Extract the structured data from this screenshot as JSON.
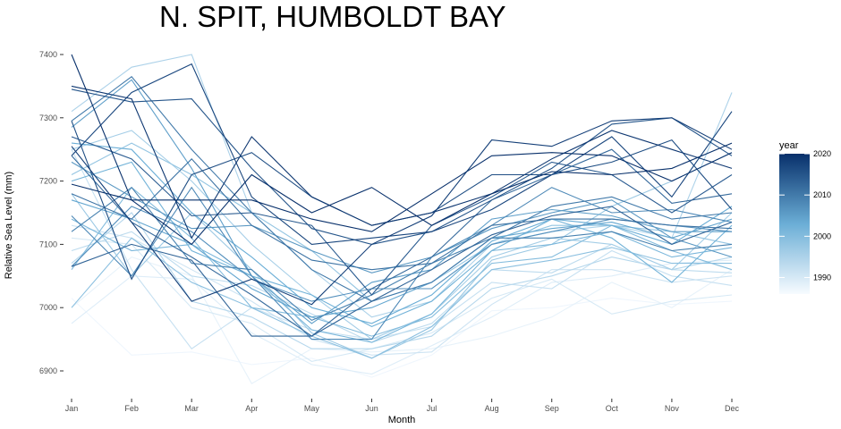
{
  "chart_data": {
    "type": "line",
    "title": "N. SPIT, HUMBOLDT BAY",
    "xlabel": "Month",
    "ylabel": "Relative Sea Level (mm)",
    "categories": [
      "Jan",
      "Feb",
      "Mar",
      "Apr",
      "May",
      "Jun",
      "Jul",
      "Aug",
      "Sep",
      "Oct",
      "Nov",
      "Dec"
    ],
    "ylim": [
      6870,
      7410
    ],
    "yticks": [
      6900,
      7000,
      7100,
      7200,
      7300,
      7400
    ],
    "grid": false,
    "legend": {
      "title": "year",
      "position": "right",
      "type": "colorbar",
      "range": [
        1986,
        2020
      ],
      "ticks": [
        1990,
        2000,
        2010,
        2020
      ],
      "color_low": "#f7fbff",
      "color_high": "#08306b"
    },
    "series": [
      {
        "year": 1987,
        "values": [
          7015,
          6925,
          6930,
          6910,
          6920,
          6890,
          6925,
          6995,
          7000,
          7015,
          7005,
          7010
        ]
      },
      {
        "year": 1988,
        "values": [
          7000,
          7080,
          7050,
          6880,
          6935,
          6930,
          6935,
          6955,
          6985,
          7040,
          7000,
          7060
        ]
      },
      {
        "year": 1989,
        "values": [
          6975,
          7050,
          7045,
          6960,
          6910,
          6895,
          6940,
          6985,
          7040,
          7050,
          7070,
          7075
        ]
      },
      {
        "year": 1990,
        "values": [
          7110,
          7100,
          7000,
          6975,
          6915,
          6935,
          6960,
          7015,
          7045,
          6990,
          7010,
          7020
        ]
      },
      {
        "year": 1991,
        "values": [
          7130,
          7110,
          7060,
          7010,
          6950,
          6925,
          6930,
          7005,
          7060,
          7060,
          7040,
          7050
        ]
      },
      {
        "year": 1992,
        "values": [
          7250,
          7060,
          6935,
          7000,
          6965,
          6950,
          6970,
          7040,
          7030,
          7090,
          7050,
          7035
        ]
      },
      {
        "year": 1993,
        "values": [
          7090,
          7120,
          7050,
          7035,
          6990,
          6945,
          6975,
          7060,
          7055,
          7100,
          7060,
          7055
        ]
      },
      {
        "year": 1994,
        "values": [
          7070,
          7150,
          7010,
          6985,
          6935,
          6935,
          6955,
          7030,
          7050,
          7080,
          7060,
          7080
        ]
      },
      {
        "year": 1995,
        "values": [
          7310,
          7380,
          7400,
          7150,
          7060,
          6985,
          7010,
          7100,
          7120,
          7130,
          7110,
          7340
        ]
      },
      {
        "year": 1996,
        "values": [
          7250,
          7280,
          7200,
          7100,
          7020,
          6950,
          6990,
          7080,
          7110,
          7100,
          7060,
          7150
        ]
      },
      {
        "year": 1997,
        "values": [
          7180,
          7050,
          7150,
          7060,
          6960,
          6920,
          6965,
          7075,
          7100,
          7160,
          7200,
          7245
        ]
      },
      {
        "year": 1998,
        "values": [
          7210,
          7260,
          7210,
          7150,
          7090,
          7010,
          7040,
          7100,
          7130,
          7130,
          7120,
          7100
        ]
      },
      {
        "year": 1999,
        "values": [
          7000,
          7110,
          7040,
          7000,
          6955,
          6920,
          6970,
          7060,
          7075,
          7095,
          7070,
          7070
        ]
      },
      {
        "year": 2000,
        "values": [
          7060,
          7190,
          7110,
          7000,
          6985,
          6955,
          6985,
          7070,
          7080,
          7130,
          7090,
          7060
        ]
      },
      {
        "year": 2001,
        "values": [
          7140,
          7090,
          7100,
          7050,
          6965,
          6945,
          6990,
          7090,
          7100,
          7120,
          7080,
          7095
        ]
      },
      {
        "year": 2002,
        "values": [
          7200,
          7230,
          7090,
          7050,
          7020,
          6970,
          7010,
          7090,
          7140,
          7110,
          7040,
          7130
        ]
      },
      {
        "year": 2003,
        "values": [
          7260,
          7250,
          7150,
          7080,
          7000,
          6975,
          7020,
          7105,
          7140,
          7130,
          7100,
          7160
        ]
      },
      {
        "year": 2004,
        "values": [
          7170,
          7140,
          7100,
          7030,
          6985,
          7000,
          7040,
          7110,
          7125,
          7135,
          7110,
          7140
        ]
      },
      {
        "year": 2005,
        "values": [
          7285,
          7360,
          7220,
          7050,
          6975,
          7040,
          7060,
          7140,
          7155,
          7145,
          7120,
          7120
        ]
      },
      {
        "year": 2006,
        "values": [
          7230,
          7175,
          7125,
          7130,
          7090,
          7055,
          7080,
          7125,
          7150,
          7170,
          7110,
          7080
        ]
      },
      {
        "year": 2007,
        "values": [
          7065,
          7160,
          7120,
          7045,
          7010,
          7030,
          7030,
          7100,
          7120,
          7140,
          7130,
          7120
        ]
      },
      {
        "year": 2008,
        "values": [
          7145,
          7050,
          7190,
          7050,
          6950,
          6950,
          7080,
          7130,
          7190,
          7150,
          7155,
          7135
        ]
      },
      {
        "year": 2009,
        "values": [
          7120,
          7190,
          7070,
          7060,
          6980,
          7020,
          7070,
          7110,
          7110,
          7120,
          7090,
          7100
        ]
      },
      {
        "year": 2010,
        "values": [
          7295,
          7365,
          7250,
          7150,
          7060,
          7010,
          7040,
          7110,
          7160,
          7175,
          7140,
          7150
        ]
      },
      {
        "year": 2011,
        "values": [
          7180,
          7140,
          7235,
          7130,
          7075,
          7060,
          7070,
          7130,
          7140,
          7140,
          7130,
          7125
        ]
      },
      {
        "year": 2012,
        "values": [
          7240,
          7135,
          7080,
          7020,
          6955,
          7030,
          7080,
          7170,
          7210,
          7250,
          7165,
          7180
        ]
      },
      {
        "year": 2013,
        "values": [
          7065,
          7100,
          7075,
          6955,
          6955,
          7010,
          7060,
          7115,
          7145,
          7160,
          7100,
          7135
        ]
      },
      {
        "year": 2014,
        "values": [
          7270,
          7235,
          7145,
          7150,
          7130,
          7020,
          7130,
          7175,
          7230,
          7210,
          7150,
          7210
        ]
      },
      {
        "year": 2015,
        "values": [
          7345,
          7325,
          7330,
          7220,
          7125,
          7100,
          7120,
          7170,
          7220,
          7290,
          7300,
          7240
        ]
      },
      {
        "year": 2016,
        "values": [
          7295,
          7045,
          7210,
          7245,
          7175,
          7130,
          7150,
          7210,
          7210,
          7230,
          7265,
          7155
        ]
      },
      {
        "year": 2017,
        "values": [
          7240,
          7340,
          7385,
          7175,
          7100,
          7110,
          7120,
          7155,
          7210,
          7270,
          7175,
          7310
        ]
      },
      {
        "year": 2018,
        "values": [
          7255,
          7135,
          7010,
          7045,
          7005,
          7100,
          7145,
          7265,
          7255,
          7295,
          7300,
          7250
        ]
      },
      {
        "year": 2019,
        "values": [
          7350,
          7330,
          7110,
          7270,
          7175,
          7130,
          7150,
          7180,
          7235,
          7280,
          7250,
          7220
        ]
      },
      {
        "year": 2020,
        "values": [
          7400,
          7170,
          7100,
          7210,
          7150,
          7190,
          7130,
          7180,
          7215,
          7210,
          7220,
          7260
        ]
      },
      {
        "year": 2021,
        "values": [
          7195,
          7170,
          7170,
          7170,
          7140,
          7120,
          7180,
          7240,
          7245,
          7240,
          7200,
          7245
        ]
      }
    ]
  }
}
